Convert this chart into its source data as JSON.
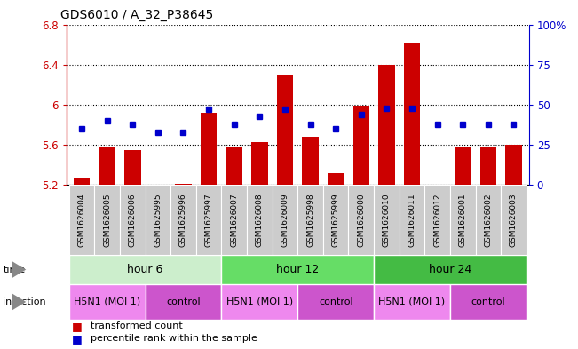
{
  "title": "GDS6010 / A_32_P38645",
  "samples": [
    "GSM1626004",
    "GSM1626005",
    "GSM1626006",
    "GSM1625995",
    "GSM1625996",
    "GSM1625997",
    "GSM1626007",
    "GSM1626008",
    "GSM1626009",
    "GSM1625998",
    "GSM1625999",
    "GSM1626000",
    "GSM1626010",
    "GSM1626011",
    "GSM1626012",
    "GSM1626001",
    "GSM1626002",
    "GSM1626003"
  ],
  "transformed_counts": [
    5.27,
    5.58,
    5.55,
    5.2,
    5.21,
    5.92,
    5.58,
    5.63,
    6.3,
    5.68,
    5.32,
    5.99,
    6.4,
    6.62,
    5.2,
    5.58,
    5.58,
    5.6
  ],
  "percentile_ranks": [
    35,
    40,
    38,
    33,
    33,
    47,
    38,
    43,
    47,
    38,
    35,
    44,
    48,
    48,
    38,
    38,
    38,
    38
  ],
  "y_min": 5.2,
  "y_max": 6.8,
  "y_ticks": [
    5.2,
    5.6,
    6.0,
    6.4,
    6.8
  ],
  "right_y_labels": [
    "0",
    "25",
    "50",
    "75",
    "100%"
  ],
  "bar_color": "#cc0000",
  "dot_color": "#0000cc",
  "background_color": "#ffffff",
  "grid_color": "#000000",
  "time_groups": [
    {
      "label": "hour 6",
      "start": 0,
      "end": 6,
      "color": "#cceecc"
    },
    {
      "label": "hour 12",
      "start": 6,
      "end": 12,
      "color": "#66dd66"
    },
    {
      "label": "hour 24",
      "start": 12,
      "end": 18,
      "color": "#44bb44"
    }
  ],
  "infection_groups": [
    {
      "label": "H5N1 (MOI 1)",
      "start": 0,
      "end": 3,
      "color": "#ee88ee"
    },
    {
      "label": "control",
      "start": 3,
      "end": 6,
      "color": "#cc55cc"
    },
    {
      "label": "H5N1 (MOI 1)",
      "start": 6,
      "end": 9,
      "color": "#ee88ee"
    },
    {
      "label": "control",
      "start": 9,
      "end": 12,
      "color": "#cc55cc"
    },
    {
      "label": "H5N1 (MOI 1)",
      "start": 12,
      "end": 15,
      "color": "#ee88ee"
    },
    {
      "label": "control",
      "start": 15,
      "end": 18,
      "color": "#cc55cc"
    }
  ],
  "legend_items": [
    {
      "label": "transformed count",
      "color": "#cc0000"
    },
    {
      "label": "percentile rank within the sample",
      "color": "#0000cc"
    }
  ]
}
